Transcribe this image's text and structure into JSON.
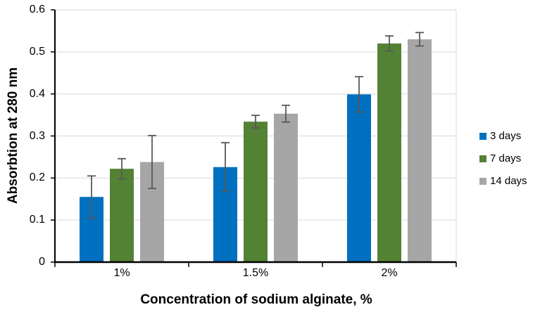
{
  "chart_data": {
    "type": "bar",
    "title": "",
    "xlabel": "Concentration of sodium alginate, %",
    "ylabel": "Absorbtion at 280 nm",
    "categories": [
      "1%",
      "1.5%",
      "2%"
    ],
    "series": [
      {
        "name": "3 days",
        "color": "#0070C0",
        "values": [
          0.155,
          0.226,
          0.399
        ],
        "errors": [
          0.05,
          0.058,
          0.042
        ]
      },
      {
        "name": "7 days",
        "color": "#548235",
        "values": [
          0.222,
          0.334,
          0.52
        ],
        "errors": [
          0.024,
          0.015,
          0.018
        ]
      },
      {
        "name": "14 days",
        "color": "#A6A6A6",
        "values": [
          0.238,
          0.353,
          0.53
        ],
        "errors": [
          0.063,
          0.02,
          0.016
        ]
      }
    ],
    "ylim": [
      0,
      0.6
    ],
    "y_ticks": [
      0,
      0.1,
      0.2,
      0.3,
      0.4,
      0.5,
      0.6
    ],
    "y_tick_labels": [
      "0",
      "0.1",
      "0.2",
      "0.3",
      "0.4",
      "0.5",
      "0.6"
    ],
    "grid": true,
    "legend_position": "right",
    "error_bars": true
  },
  "colors": {
    "background": "#FFFFFF",
    "gridline": "#D9D9D9",
    "axis": "#000000",
    "error_bar": "#595959",
    "text": "#000000"
  }
}
